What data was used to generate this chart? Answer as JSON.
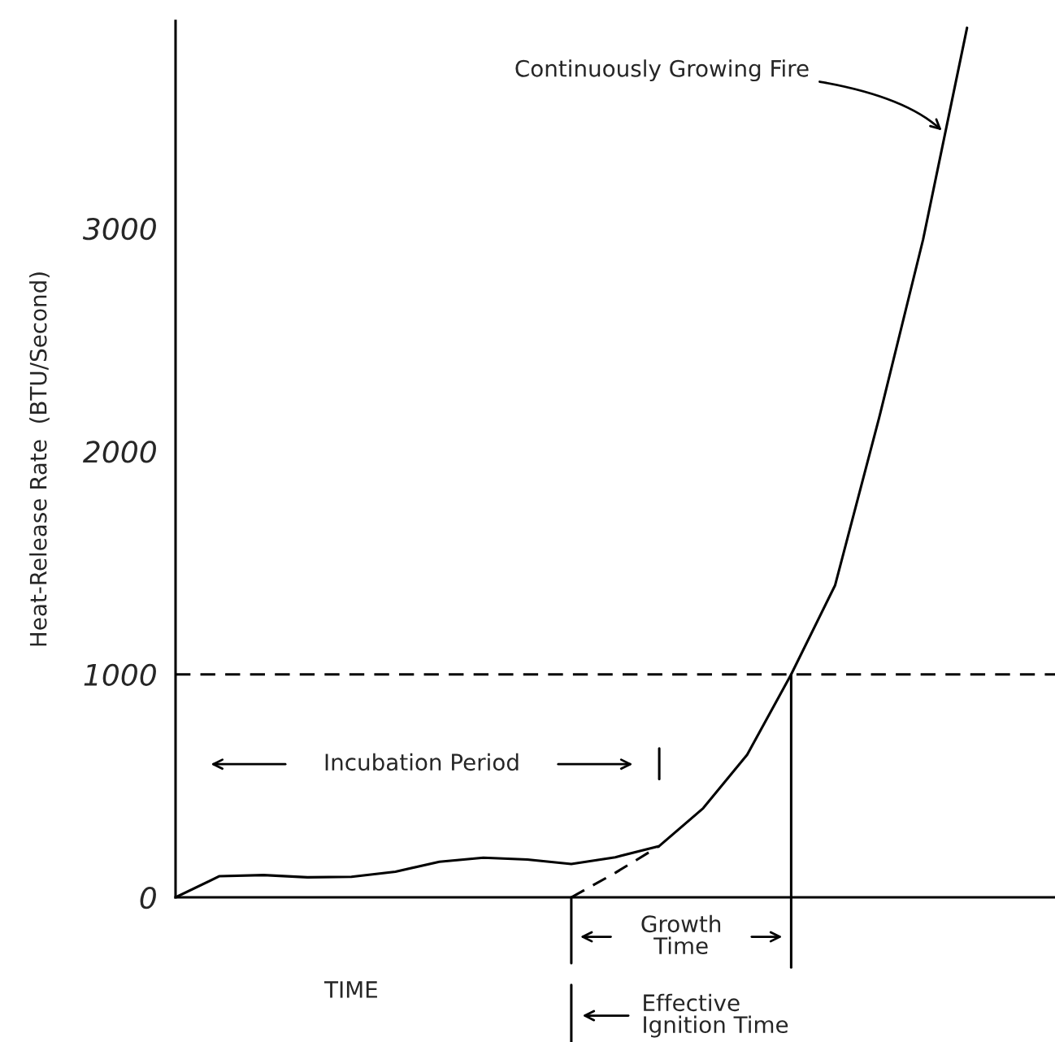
{
  "chart_data": {
    "type": "line",
    "ylabel": "Heat-Release Rate  (BTU/Second)",
    "xlabel": "TIME",
    "categories": [
      null,
      null,
      null,
      null,
      null,
      null,
      null,
      null,
      null,
      null,
      null,
      null,
      null,
      null,
      null,
      null,
      null,
      null,
      null,
      null,
      null
    ],
    "ylim": [
      0,
      3930
    ],
    "yticks": [
      0,
      1000,
      2000,
      3000
    ],
    "tick_labels": "y",
    "grid": false,
    "marker": "none",
    "series": [
      {
        "color": "#000000",
        "line_style": "solid",
        "values": [
          0,
          95,
          100,
          90,
          92,
          115,
          160,
          178,
          170,
          150,
          180,
          230,
          400,
          640,
          1000,
          1400,
          2150,
          2950,
          3900,
          null,
          null
        ]
      },
      {
        "color": "#000000",
        "line_style": "dashed",
        "values": [
          null,
          null,
          null,
          null,
          null,
          null,
          null,
          null,
          null,
          0,
          110,
          230,
          null,
          null,
          null,
          null,
          null,
          null,
          null,
          null,
          null
        ]
      }
    ],
    "ref_lines": [
      {
        "axis": "y",
        "value": 1000,
        "color": "#000000",
        "line_style": "dashed"
      }
    ],
    "annotations": [
      "Continuously Growing Fire",
      "Incubation Period",
      "Growth\nTime",
      "Effective\nIgnition Time"
    ]
  }
}
